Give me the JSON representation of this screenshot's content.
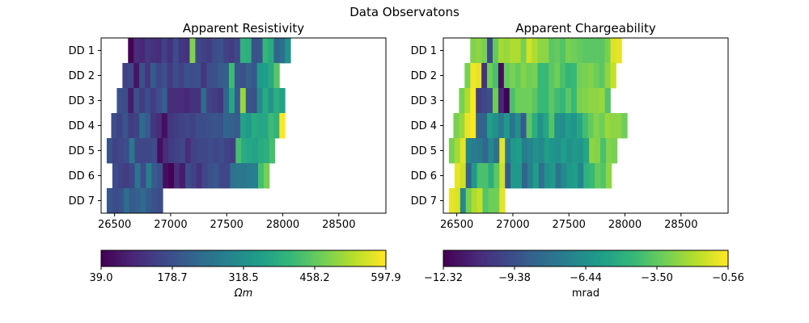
{
  "figure": {
    "suptitle": "Data Observatons"
  },
  "chart_data": [
    {
      "type": "heatmap",
      "title": "Apparent Resistivity",
      "xlabel": "",
      "ylabel": "",
      "xlim": [
        26380,
        28920
      ],
      "xticks": [
        26500,
        27000,
        27500,
        28000,
        28500
      ],
      "rows": [
        "DD 1",
        "DD 2",
        "DD 3",
        "DD 4",
        "DD 5",
        "DD 6",
        "DD 7"
      ],
      "cell_width": 50,
      "row_starts": [
        26620,
        26570,
        26520,
        26470,
        26430,
        26480,
        26430
      ],
      "values": [
        [
          40,
          110,
          100,
          130,
          120,
          110,
          150,
          120,
          170,
          130,
          120,
          490,
          160,
          150,
          140,
          170,
          180,
          150,
          140,
          160,
          400,
          390,
          180,
          190,
          410,
          380,
          220,
          240,
          320
        ],
        [
          150,
          160,
          70,
          180,
          130,
          200,
          160,
          180,
          140,
          170,
          150,
          180,
          170,
          180,
          130,
          170,
          180,
          200,
          210,
          420,
          190,
          180,
          210,
          190,
          340,
          350,
          380,
          450
        ],
        [
          180,
          170,
          80,
          180,
          140,
          170,
          140,
          170,
          210,
          110,
          110,
          110,
          100,
          120,
          120,
          230,
          150,
          140,
          130,
          220,
          370,
          200,
          510,
          190,
          180,
          300,
          380,
          330,
          390,
          360
        ],
        [
          170,
          150,
          190,
          140,
          150,
          230,
          200,
          130,
          110,
          60,
          130,
          140,
          150,
          160,
          150,
          170,
          170,
          180,
          190,
          180,
          220,
          210,
          200,
          360,
          340,
          380,
          370,
          370,
          420,
          400,
          600
        ],
        [
          180,
          150,
          160,
          170,
          260,
          160,
          160,
          160,
          170,
          60,
          110,
          140,
          150,
          160,
          110,
          150,
          160,
          160,
          170,
          160,
          170,
          150,
          140,
          430,
          380,
          370,
          360,
          380,
          390,
          430
        ],
        [
          170,
          150,
          140,
          160,
          250,
          170,
          280,
          200,
          180,
          60,
          40,
          110,
          80,
          170,
          150,
          120,
          160,
          180,
          190,
          160,
          160,
          250,
          260,
          260,
          270,
          280,
          430,
          480
        ],
        [
          190,
          170,
          180,
          240,
          200,
          210,
          230,
          200,
          180,
          170
        ]
      ],
      "colorbar": {
        "min": 39.0,
        "max": 597.9,
        "ticks": [
          "39.0",
          "178.7",
          "318.5",
          "458.2",
          "597.9"
        ],
        "label": "Ωm",
        "colormap": "viridis"
      }
    },
    {
      "type": "heatmap",
      "title": "Apparent Chargeability",
      "xlabel": "",
      "ylabel": "",
      "xlim": [
        26380,
        28920
      ],
      "xticks": [
        26500,
        27000,
        27500,
        28000,
        28500
      ],
      "rows": [
        "DD 1",
        "DD 2",
        "DD 3",
        "DD 4",
        "DD 5",
        "DD 6",
        "DD 7"
      ],
      "cell_width": 50,
      "row_starts": [
        26620,
        26570,
        26520,
        26470,
        26430,
        26480,
        26430
      ],
      "values": [
        [
          -2.8,
          -2.6,
          -3.0,
          -9.6,
          -3.4,
          -2.2,
          -2.4,
          -2.0,
          -2.0,
          -3.0,
          -1.4,
          -2.0,
          -2.6,
          -2.6,
          -3.6,
          -3.4,
          -3.8,
          -3.0,
          -3.2,
          -3.4,
          -3.6,
          -3.6,
          -3.6,
          -3.6,
          -3.0,
          -1.2,
          -1.0
        ],
        [
          -3.0,
          -0.8,
          -1.0,
          -10.6,
          -3.2,
          -4.0,
          -12.0,
          -3.4,
          -3.0,
          -3.4,
          -2.8,
          -3.2,
          -3.0,
          -4.4,
          -4.4,
          -3.6,
          -3.2,
          -4.0,
          -4.6,
          -4.4,
          -3.2,
          -3.0,
          -2.8,
          -3.2,
          -3.6,
          -2.6,
          -1.6
        ],
        [
          -3.0,
          -2.0,
          -0.6,
          -10.2,
          -9.8,
          -9.4,
          -3.2,
          -11.0,
          -12.3,
          -4.0,
          -3.2,
          -3.2,
          -3.2,
          -3.6,
          -4.4,
          -4.4,
          -3.6,
          -4.2,
          -4.6,
          -3.6,
          -4.4,
          -3.0,
          -2.8,
          -2.6,
          -2.6,
          -2.4,
          -3.8
        ],
        [
          -3.0,
          -2.4,
          -1.0,
          -0.6,
          -8.6,
          -8.6,
          -5.8,
          -6.4,
          -7.4,
          -6.0,
          -7.8,
          -6.6,
          -9.0,
          -3.6,
          -5.0,
          -6.4,
          -5.4,
          -3.8,
          -6.4,
          -6.6,
          -5.8,
          -6.2,
          -5.4,
          -4.2,
          -3.4,
          -2.8,
          -3.2,
          -2.4,
          -2.6,
          -2.6,
          -3.2
        ],
        [
          -3.0,
          -2.2,
          -1.0,
          -7.0,
          -7.4,
          -7.6,
          -8.4,
          -6.8,
          -8.0,
          -1.0,
          -7.6,
          -6.0,
          -5.8,
          -7.4,
          -7.0,
          -6.4,
          -6.8,
          -5.8,
          -6.2,
          -6.4,
          -5.8,
          -6.4,
          -6.0,
          -6.2,
          -5.4,
          -2.6,
          -2.8,
          -4.0,
          -2.8,
          -3.0
        ],
        [
          -1.0,
          -1.4,
          -8.6,
          -6.0,
          -4.0,
          -4.0,
          -5.0,
          -3.6,
          -1.4,
          -9.0,
          -6.0,
          -6.0,
          -8.6,
          -7.2,
          -5.8,
          -8.0,
          -6.4,
          -6.0,
          -7.8,
          -6.8,
          -6.0,
          -5.8,
          -7.0,
          -4.8,
          -4.4,
          -3.4,
          -3.8,
          -2.6
        ],
        [
          -1.0,
          -1.2,
          -6.8,
          -3.0,
          -2.0,
          -1.6,
          -3.8,
          -3.2,
          -3.2,
          -1.0
        ]
      ],
      "colorbar": {
        "min": -12.32,
        "max": -0.56,
        "ticks": [
          "−12.32",
          "−9.38",
          "−6.44",
          "−3.50",
          "−0.56"
        ],
        "label": "mrad",
        "colormap": "viridis"
      }
    }
  ]
}
